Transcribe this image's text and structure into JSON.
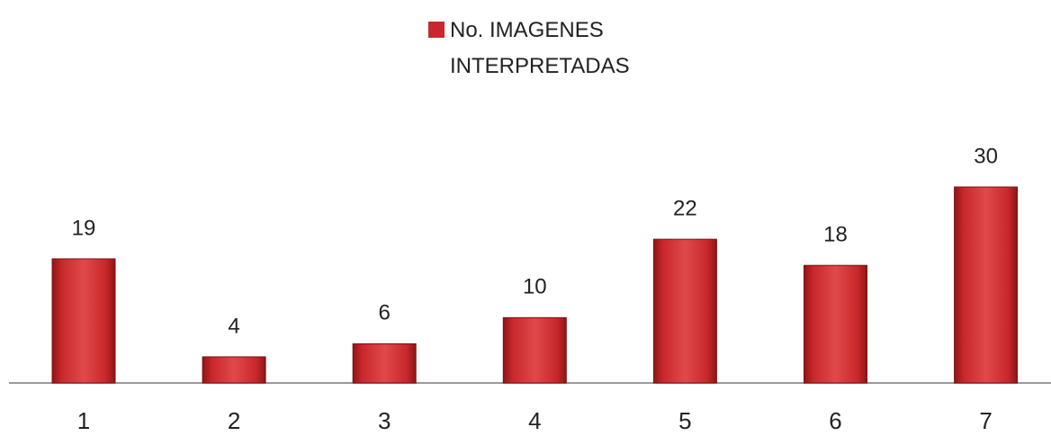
{
  "chart_data": {
    "type": "bar",
    "categories": [
      "1",
      "2",
      "3",
      "4",
      "5",
      "6",
      "7"
    ],
    "series": [
      {
        "name": "No. IMAGENES INTERPRETADAS",
        "color": "#c8282b",
        "values": [
          19,
          4,
          6,
          10,
          22,
          18,
          30
        ]
      }
    ],
    "ylim": [
      0,
      30
    ],
    "legend": "top",
    "data_labels": true
  }
}
